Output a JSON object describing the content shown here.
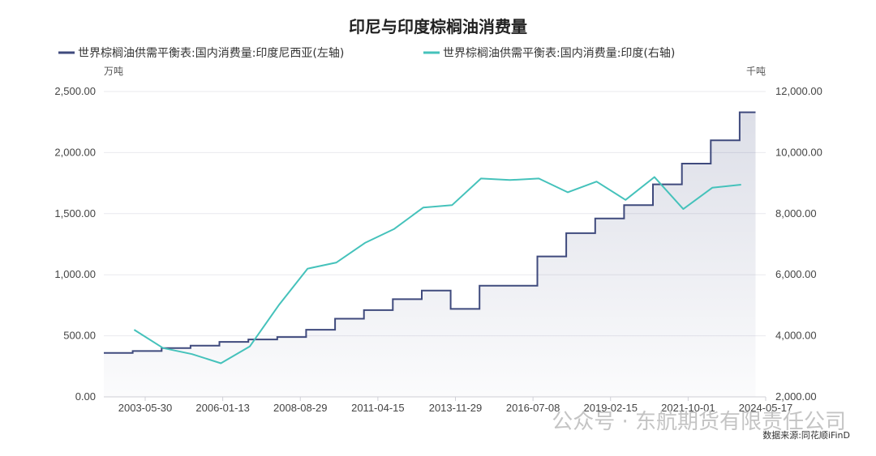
{
  "chart_data": {
    "type": "line",
    "title": "印尼与印度棕榈油消费量",
    "left_unit": "万吨",
    "right_unit": "千吨",
    "x_tick_labels": [
      "2003-05-30",
      "2006-01-13",
      "2008-08-29",
      "2011-04-15",
      "2013-11-29",
      "2016-07-08",
      "2019-02-15",
      "2021-10-01",
      "2024-05-17"
    ],
    "left_axis": {
      "min": 0,
      "max": 2500,
      "ticks": [
        "0.00",
        "500.00",
        "1,000.00",
        "1,500.00",
        "2,000.00",
        "2,500.00"
      ]
    },
    "right_axis": {
      "min": 2000,
      "max": 12000,
      "ticks": [
        "2,000.00",
        "4,000.00",
        "6,000.00",
        "8,000.00",
        "10,000.00",
        "12,000.00"
      ]
    },
    "grid": true,
    "legend_position": "top",
    "series": [
      {
        "name": "世界棕榈油供需平衡表:国内消费量:印度尼西亚(左轴)",
        "axis": "left",
        "style": "step",
        "color": "#3f4a7d",
        "x": [
          "2002",
          "2003",
          "2004",
          "2005",
          "2006",
          "2007",
          "2008",
          "2009",
          "2010",
          "2011",
          "2012",
          "2013",
          "2014",
          "2015",
          "2016",
          "2017",
          "2018",
          "2019",
          "2020",
          "2021",
          "2022",
          "2023",
          "2024"
        ],
        "values": [
          360,
          375,
          400,
          420,
          450,
          470,
          490,
          550,
          640,
          710,
          800,
          870,
          720,
          910,
          910,
          1150,
          1340,
          1460,
          1570,
          1740,
          1910,
          2100,
          2330
        ]
      },
      {
        "name": "世界棕榈油供需平衡表:国内消费量:印度(右轴)",
        "axis": "right",
        "style": "line",
        "color": "#45c2bb",
        "x": [
          "2003",
          "2004",
          "2005",
          "2006",
          "2007",
          "2008",
          "2009",
          "2010",
          "2011",
          "2012",
          "2013",
          "2014",
          "2015",
          "2016",
          "2017",
          "2018",
          "2019",
          "2020",
          "2021",
          "2022",
          "2023",
          "2024"
        ],
        "values": [
          4200,
          3600,
          3400,
          3100,
          3650,
          5000,
          6200,
          6400,
          7050,
          7500,
          8200,
          8280,
          9150,
          9100,
          9150,
          8700,
          9050,
          8450,
          9200,
          8150,
          8850,
          8950
        ]
      }
    ]
  },
  "watermark": "公众号 · 东航期货有限责任公司",
  "source": "数据来源:同花顺iFinD"
}
